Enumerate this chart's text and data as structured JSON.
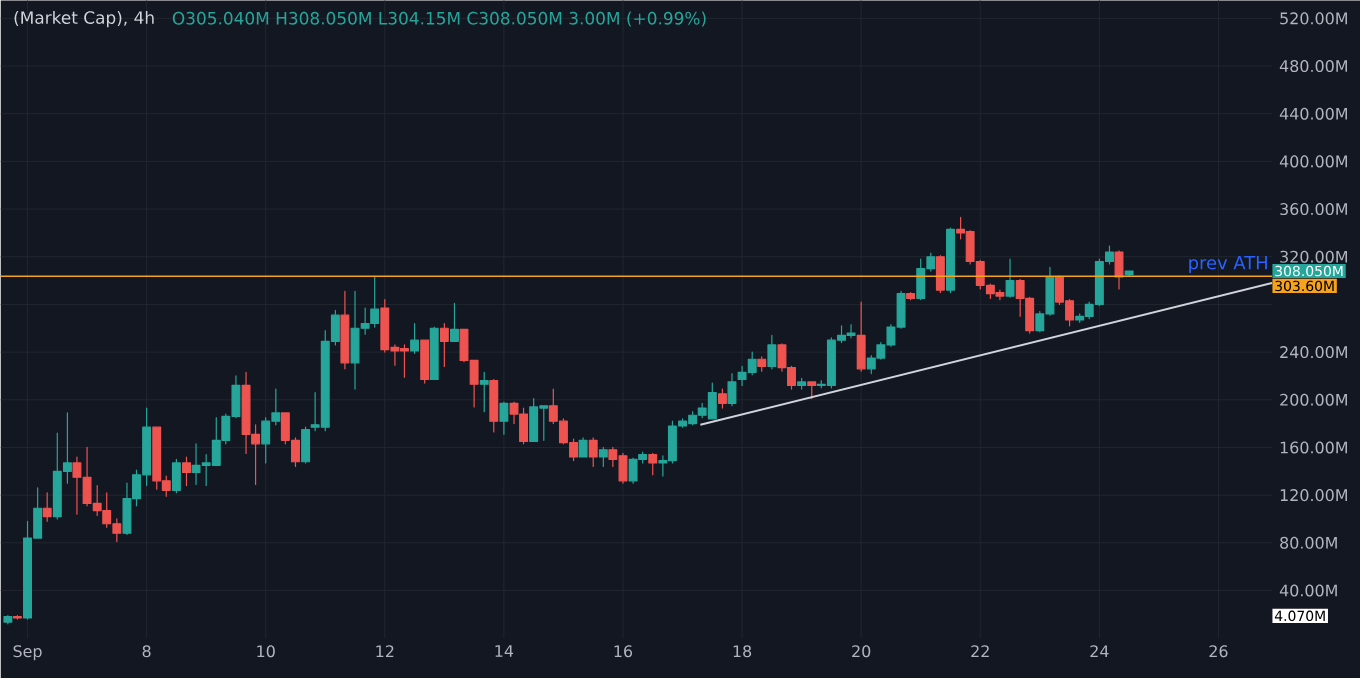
{
  "chart_data": {
    "type": "candlestick",
    "title": "(Market Cap), 4h",
    "subtitle": "O305.040M H308.050M L304.15M C308.050M 3.00M (+0.99%)",
    "x": [
      5.67,
      5.83,
      6,
      6.17,
      6.33,
      6.5,
      6.67,
      6.83,
      7,
      7.17,
      7.33,
      7.5,
      7.67,
      7.83,
      8,
      8.17,
      8.33,
      8.5,
      8.67,
      8.83,
      9,
      9.17,
      9.33,
      9.5,
      9.67,
      9.83,
      10,
      10.17,
      10.33,
      10.5,
      10.67,
      10.83,
      11,
      11.17,
      11.33,
      11.5,
      11.67,
      11.83,
      12,
      12.17,
      12.33,
      12.5,
      12.67,
      12.83,
      13,
      13.17,
      13.33,
      13.5,
      13.67,
      13.83,
      14,
      14.17,
      14.33,
      14.5,
      14.67,
      14.83,
      15,
      15.17,
      15.33,
      15.5,
      15.67,
      15.83,
      16,
      16.17,
      16.33,
      16.5,
      16.67,
      16.83,
      17,
      17.17,
      17.33,
      17.5,
      17.67,
      17.83,
      18,
      18.17,
      18.33,
      18.5,
      18.67,
      18.83,
      19,
      19.17,
      19.33,
      19.5,
      19.67,
      19.83,
      20,
      20.17,
      20.33,
      20.5,
      20.67,
      20.83,
      21,
      21.17,
      21.33,
      21.5,
      21.67,
      21.83,
      22,
      22.17,
      22.33,
      22.5,
      22.67,
      22.83,
      23,
      23.17,
      23.33,
      23.5,
      23.67,
      23.83,
      24,
      24.17,
      24.33,
      24.5
    ],
    "ohlc": [
      [
        13.5,
        19,
        12,
        18
      ],
      [
        18,
        19,
        16,
        17
      ],
      [
        17,
        98,
        16,
        84
      ],
      [
        84,
        126,
        84,
        109
      ],
      [
        109,
        122,
        98,
        102
      ],
      [
        102,
        172,
        100,
        140
      ],
      [
        140,
        189,
        130,
        147
      ],
      [
        147,
        152,
        104,
        135
      ],
      [
        135,
        160,
        111,
        113
      ],
      [
        113,
        128,
        103,
        107
      ],
      [
        107,
        122,
        93,
        96
      ],
      [
        96,
        100,
        81,
        88
      ],
      [
        88,
        130,
        87,
        117
      ],
      [
        117,
        141,
        111,
        137
      ],
      [
        137,
        193,
        128,
        177
      ],
      [
        177,
        177,
        125,
        132
      ],
      [
        132,
        136,
        119,
        124
      ],
      [
        124,
        150,
        122,
        147
      ],
      [
        147,
        152,
        128,
        139
      ],
      [
        139,
        163,
        129,
        145
      ],
      [
        145,
        154,
        128,
        147
      ],
      [
        145,
        185,
        145,
        166
      ],
      [
        166,
        188,
        163,
        186
      ],
      [
        186,
        220,
        185,
        212
      ],
      [
        212,
        223,
        155,
        171
      ],
      [
        171,
        179,
        129,
        163
      ],
      [
        163,
        185,
        147,
        182
      ],
      [
        182,
        209,
        179,
        189
      ],
      [
        189,
        189,
        163,
        166
      ],
      [
        166,
        168,
        144,
        148
      ],
      [
        148,
        177,
        147,
        175
      ],
      [
        177,
        206,
        174,
        179
      ],
      [
        177,
        258,
        174,
        249
      ],
      [
        249,
        275,
        246,
        271
      ],
      [
        271,
        291,
        226,
        231
      ],
      [
        231,
        291,
        209,
        260
      ],
      [
        260,
        277,
        255,
        264
      ],
      [
        264,
        303.6,
        261,
        276
      ],
      [
        277,
        284,
        240,
        242
      ],
      [
        244,
        246,
        229,
        241
      ],
      [
        243,
        246,
        219,
        241
      ],
      [
        241,
        264,
        239,
        250
      ],
      [
        250,
        250,
        214,
        217
      ],
      [
        217,
        261,
        217,
        260
      ],
      [
        260,
        264,
        228,
        249
      ],
      [
        249,
        281,
        249,
        259
      ],
      [
        259,
        259,
        232,
        233
      ],
      [
        233,
        233,
        194,
        213
      ],
      [
        213,
        223,
        190,
        216
      ],
      [
        216,
        217,
        173,
        182
      ],
      [
        182,
        198,
        171,
        197
      ],
      [
        197,
        198,
        180,
        188
      ],
      [
        188,
        193,
        163,
        165
      ],
      [
        165,
        201,
        165,
        194
      ],
      [
        193,
        195,
        166,
        195
      ],
      [
        195,
        209,
        180,
        182
      ],
      [
        182,
        184,
        163,
        164
      ],
      [
        164,
        167,
        149,
        152
      ],
      [
        152,
        168,
        152,
        166
      ],
      [
        166,
        168,
        144,
        152
      ],
      [
        152,
        160,
        144,
        158
      ],
      [
        158,
        160,
        144,
        150
      ],
      [
        153,
        155,
        130,
        132
      ],
      [
        132,
        151,
        130,
        150
      ],
      [
        150,
        156,
        147,
        154
      ],
      [
        154,
        155,
        137,
        147
      ],
      [
        147,
        153,
        136,
        149
      ],
      [
        149,
        182,
        147,
        178
      ],
      [
        178,
        184,
        177,
        182
      ],
      [
        180,
        190,
        179,
        187
      ],
      [
        187,
        197,
        185,
        193
      ],
      [
        184,
        214,
        184,
        206
      ],
      [
        205,
        209,
        193,
        197
      ],
      [
        197,
        222,
        195,
        215
      ],
      [
        217,
        228,
        212,
        223
      ],
      [
        223,
        240,
        221,
        234
      ],
      [
        234,
        236,
        224,
        228
      ],
      [
        228,
        254,
        226,
        246
      ],
      [
        246,
        247,
        224,
        227
      ],
      [
        227,
        228,
        209,
        212
      ],
      [
        212,
        218,
        209,
        215
      ],
      [
        215,
        215,
        201,
        212
      ],
      [
        212,
        216,
        210,
        213
      ],
      [
        212,
        252,
        210,
        250
      ],
      [
        250,
        262,
        248,
        254
      ],
      [
        254,
        263,
        252,
        256
      ],
      [
        254,
        282,
        224,
        226
      ],
      [
        226,
        237,
        222,
        235
      ],
      [
        235,
        248,
        234,
        246
      ],
      [
        246,
        263,
        245,
        261
      ],
      [
        261,
        291,
        260,
        289
      ],
      [
        289,
        290,
        284,
        285
      ],
      [
        285,
        318,
        284,
        310
      ],
      [
        310,
        323,
        308,
        320
      ],
      [
        320,
        321,
        290,
        292
      ],
      [
        292,
        344,
        290,
        343
      ],
      [
        343,
        353,
        335,
        340
      ],
      [
        341,
        342,
        314,
        316
      ],
      [
        316,
        317,
        293,
        296
      ],
      [
        296,
        297,
        285,
        289
      ],
      [
        290,
        292,
        284,
        287
      ],
      [
        287,
        318,
        286,
        300
      ],
      [
        300,
        301,
        270,
        285
      ],
      [
        285,
        286,
        256,
        258
      ],
      [
        258,
        274,
        257,
        272
      ],
      [
        272,
        311,
        271,
        303
      ],
      [
        303,
        304,
        280,
        282
      ],
      [
        283,
        284,
        262,
        267
      ],
      [
        267,
        272,
        265,
        270
      ],
      [
        270,
        282,
        268,
        280
      ],
      [
        280,
        318,
        279,
        316
      ],
      [
        316,
        329,
        314,
        324
      ],
      [
        324,
        325,
        293,
        303
      ],
      [
        305.04,
        308.05,
        304.15,
        308.05
      ]
    ],
    "colors": [
      "#26a69a",
      "#ef5350",
      "#26a69a",
      "#26a69a",
      "#ef5350",
      "#26a69a",
      "#26a69a",
      "#ef5350",
      "#ef5350",
      "#ef5350",
      "#ef5350",
      "#ef5350",
      "#26a69a",
      "#26a69a",
      "#26a69a",
      "#ef5350",
      "#ef5350",
      "#26a69a",
      "#ef5350",
      "#26a69a",
      "#26a69a",
      "#26a69a",
      "#26a69a",
      "#26a69a",
      "#ef5350",
      "#ef5350",
      "#26a69a",
      "#26a69a",
      "#ef5350",
      "#ef5350",
      "#26a69a",
      "#26a69a",
      "#26a69a",
      "#26a69a",
      "#ef5350",
      "#26a69a",
      "#26a69a",
      "#26a69a",
      "#ef5350",
      "#ef5350",
      "#ef5350",
      "#26a69a",
      "#ef5350",
      "#26a69a",
      "#ef5350",
      "#26a69a",
      "#ef5350",
      "#ef5350",
      "#26a69a",
      "#ef5350",
      "#26a69a",
      "#ef5350",
      "#ef5350",
      "#26a69a",
      "#26a69a",
      "#ef5350",
      "#ef5350",
      "#ef5350",
      "#26a69a",
      "#ef5350",
      "#26a69a",
      "#ef5350",
      "#ef5350",
      "#26a69a",
      "#26a69a",
      "#ef5350",
      "#26a69a",
      "#26a69a",
      "#26a69a",
      "#26a69a",
      "#26a69a",
      "#26a69a",
      "#ef5350",
      "#26a69a",
      "#26a69a",
      "#26a69a",
      "#ef5350",
      "#26a69a",
      "#ef5350",
      "#ef5350",
      "#26a69a",
      "#ef5350",
      "#26a69a",
      "#26a69a",
      "#26a69a",
      "#26a69a",
      "#ef5350",
      "#26a69a",
      "#26a69a",
      "#26a69a",
      "#26a69a",
      "#ef5350",
      "#26a69a",
      "#26a69a",
      "#ef5350",
      "#26a69a",
      "#ef5350",
      "#ef5350",
      "#ef5350",
      "#ef5350",
      "#ef5350",
      "#26a69a",
      "#ef5350",
      "#ef5350",
      "#26a69a",
      "#26a69a",
      "#ef5350",
      "#ef5350",
      "#26a69a",
      "#26a69a",
      "#26a69a",
      "#26a69a",
      "#ef5350",
      "#26a69a"
    ],
    "series": [
      {
        "type": "line",
        "color": "#d1d4dc",
        "x": [
          17.3,
          26.9
        ],
        "values": [
          179,
          298
        ]
      }
    ],
    "ref_lines": [
      {
        "axis": "y",
        "value": 303.6,
        "label": "prev ATH",
        "color": "#f7a21b"
      }
    ],
    "annotations": [
      "308.050M",
      "303.60M",
      "4.070M"
    ],
    "xlim": [
      5.55,
      26.9
    ],
    "ylim": [
      0,
      535
    ],
    "xticks": [
      {
        "value": 6,
        "label": "Sep"
      },
      8,
      10,
      12,
      14,
      16,
      18,
      20,
      22,
      24,
      26
    ],
    "yticks": [
      {
        "value": 40,
        "label": "40.00M"
      },
      {
        "value": 80,
        "label": "80.00M"
      },
      {
        "value": 120,
        "label": "120.00M"
      },
      {
        "value": 160,
        "label": "160.00M"
      },
      {
        "value": 200,
        "label": "200.00M"
      },
      {
        "value": 240,
        "label": "240.00M"
      },
      {
        "value": 280,
        "label": null
      },
      {
        "value": 320,
        "label": "320.00M"
      },
      {
        "value": 360,
        "label": "360.00M"
      },
      {
        "value": 400,
        "label": "400.00M"
      },
      {
        "value": 440,
        "label": "440.00M"
      },
      {
        "value": 480,
        "label": "480.00M"
      },
      {
        "value": 520,
        "label": "520.00M"
      }
    ],
    "grid": true
  }
}
